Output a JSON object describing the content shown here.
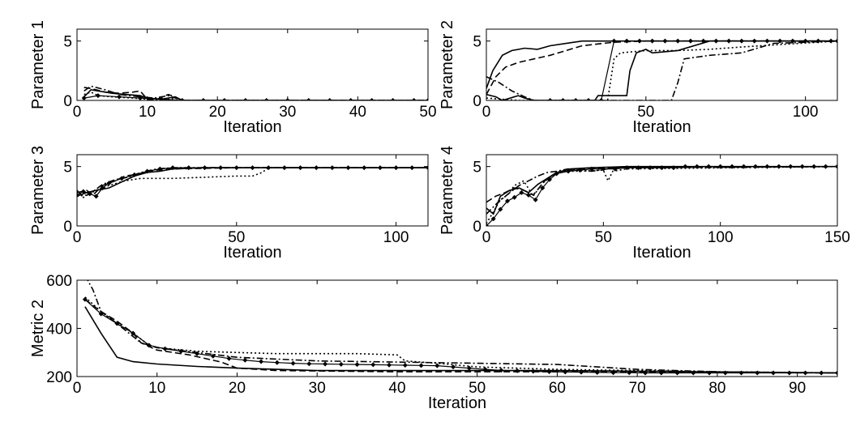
{
  "chart_data": [
    {
      "type": "line",
      "xlabel": "Iteration",
      "ylabel": "Parameter 1",
      "xlim": [
        0,
        50
      ],
      "ylim": [
        0,
        6
      ],
      "xticks": [
        0,
        10,
        20,
        30,
        40,
        50
      ],
      "yticks": [
        0,
        5
      ],
      "series": [
        {
          "style": "solid",
          "x": [
            1,
            2,
            3,
            5,
            7,
            9,
            10,
            12,
            14,
            15,
            20,
            30,
            40,
            50
          ],
          "y": [
            0.3,
            0.9,
            0.8,
            0.6,
            0.5,
            0.4,
            0.2,
            0.1,
            0.3,
            0,
            0,
            0,
            0,
            0
          ]
        },
        {
          "style": "dashed",
          "x": [
            1,
            2,
            4,
            6,
            8,
            9,
            10,
            11,
            13,
            14,
            15,
            30,
            50
          ],
          "y": [
            1.1,
            1.0,
            0.7,
            0.6,
            0.7,
            0.8,
            0.1,
            0,
            0.5,
            0.3,
            0,
            0,
            0
          ]
        },
        {
          "style": "dotted",
          "x": [
            1,
            2,
            3,
            5,
            8,
            10,
            12,
            14,
            15,
            50
          ],
          "y": [
            0.5,
            0.7,
            0.4,
            0.3,
            0.2,
            0.1,
            0,
            0.2,
            0,
            0
          ]
        },
        {
          "style": "dashdot",
          "x": [
            1,
            2,
            4,
            6,
            9,
            11,
            13,
            15,
            50
          ],
          "y": [
            0.8,
            1.2,
            0.9,
            0.5,
            0.3,
            0.2,
            0.4,
            0,
            0
          ]
        },
        {
          "style": "markers",
          "x": [
            1,
            3,
            6,
            9,
            12,
            15,
            18,
            21,
            24,
            27,
            30,
            33,
            36,
            39,
            42,
            45,
            48,
            50
          ],
          "y": [
            0.2,
            0.4,
            0.3,
            0.2,
            0.1,
            0,
            0,
            0,
            0,
            0,
            0,
            0,
            0,
            0,
            0,
            0,
            0,
            0
          ]
        }
      ]
    },
    {
      "type": "line",
      "xlabel": "Iteration",
      "ylabel": "Parameter 2",
      "xlim": [
        0,
        110
      ],
      "ylim": [
        0,
        6
      ],
      "xticks": [
        0,
        50,
        100
      ],
      "yticks": [
        0,
        5
      ],
      "series": [
        {
          "style": "solid",
          "x": [
            0,
            2,
            5,
            8,
            12,
            16,
            20,
            25,
            30,
            40,
            60,
            110
          ],
          "y": [
            1,
            2.5,
            3.8,
            4.2,
            4.4,
            4.3,
            4.6,
            4.8,
            5,
            5,
            5,
            5
          ]
        },
        {
          "style": "dashed",
          "x": [
            0,
            3,
            6,
            10,
            15,
            20,
            25,
            30,
            40,
            50,
            70,
            110
          ],
          "y": [
            0.5,
            2,
            2.8,
            3.2,
            3.5,
            3.8,
            4.2,
            4.6,
            4.9,
            5,
            5,
            5
          ]
        },
        {
          "style": "solid",
          "x": [
            0,
            3,
            5,
            10,
            12,
            15,
            20,
            30,
            34,
            35,
            44,
            45,
            47,
            50,
            52,
            60,
            70,
            110
          ],
          "y": [
            0.5,
            0.3,
            0,
            0.4,
            0.2,
            0,
            0,
            0,
            0,
            0.4,
            0.4,
            2.5,
            4,
            4.3,
            4,
            4.2,
            5,
            5
          ]
        },
        {
          "style": "dotted",
          "x": [
            0,
            5,
            10,
            20,
            38,
            40,
            42,
            50,
            60,
            70,
            80,
            110
          ],
          "y": [
            0.2,
            0.1,
            0,
            0,
            0,
            3.5,
            4,
            4.2,
            4.2,
            4.3,
            4.5,
            5
          ]
        },
        {
          "style": "dashdot",
          "x": [
            0,
            4,
            8,
            12,
            15,
            20,
            40,
            58,
            60,
            62,
            70,
            80,
            90,
            110
          ],
          "y": [
            2,
            1.5,
            0.8,
            0.3,
            0,
            0,
            0,
            0,
            1.5,
            3.5,
            3.8,
            4,
            4.8,
            5
          ]
        },
        {
          "style": "markers",
          "x": [
            20,
            24,
            28,
            32,
            36,
            40,
            44,
            48,
            52,
            56,
            60,
            64,
            68,
            72,
            76,
            80,
            84,
            88,
            92,
            96,
            100,
            104,
            108,
            110
          ],
          "y": [
            0,
            0,
            0,
            0,
            0,
            5,
            5,
            5,
            5,
            5,
            5,
            5,
            5,
            5,
            5,
            5,
            5,
            5,
            5,
            5,
            5,
            5,
            5,
            5
          ]
        }
      ]
    },
    {
      "type": "line",
      "xlabel": "Iteration",
      "ylabel": "Parameter 3",
      "xlim": [
        0,
        110
      ],
      "ylim": [
        0,
        6
      ],
      "xticks": [
        0,
        50,
        100
      ],
      "yticks": [
        0,
        5
      ],
      "series": [
        {
          "style": "solid",
          "x": [
            0,
            3,
            6,
            10,
            14,
            18,
            22,
            26,
            30,
            40,
            60,
            110
          ],
          "y": [
            2.5,
            2.8,
            3,
            3.2,
            3.7,
            4.2,
            4.5,
            4.6,
            4.8,
            4.9,
            4.9,
            4.9
          ]
        },
        {
          "style": "dashed",
          "x": [
            0,
            3,
            5,
            8,
            12,
            15,
            20,
            25,
            30,
            50,
            110
          ],
          "y": [
            2.8,
            3,
            2.6,
            3.4,
            3.8,
            4.2,
            4.4,
            4.7,
            4.8,
            4.9,
            4.9
          ]
        },
        {
          "style": "dotted",
          "x": [
            0,
            3,
            6,
            10,
            15,
            20,
            30,
            40,
            50,
            55,
            58,
            60,
            110
          ],
          "y": [
            2.5,
            2.6,
            3,
            3.4,
            3.8,
            4,
            4,
            4.1,
            4.2,
            4.2,
            4.5,
            4.9,
            4.9
          ]
        },
        {
          "style": "dashdot",
          "x": [
            0,
            2,
            5,
            8,
            12,
            16,
            20,
            25,
            30,
            60,
            110
          ],
          "y": [
            3,
            2.4,
            2.9,
            3.5,
            3.9,
            4.1,
            4.5,
            4.8,
            4.9,
            4.9,
            4.9
          ]
        },
        {
          "style": "markers",
          "x": [
            0,
            2,
            4,
            6,
            8,
            10,
            14,
            18,
            22,
            26,
            30,
            35,
            40,
            45,
            50,
            55,
            60,
            65,
            70,
            75,
            80,
            85,
            90,
            95,
            100,
            105,
            110
          ],
          "y": [
            2.6,
            2.9,
            2.7,
            2.5,
            3.2,
            3.6,
            4,
            4.3,
            4.6,
            4.8,
            4.9,
            4.9,
            4.9,
            4.9,
            4.9,
            4.9,
            4.9,
            4.9,
            4.9,
            4.9,
            4.9,
            4.9,
            4.9,
            4.9,
            4.9,
            4.9,
            4.9
          ]
        }
      ]
    },
    {
      "type": "line",
      "xlabel": "Iteration",
      "ylabel": "Parameter 4",
      "xlim": [
        0,
        150
      ],
      "ylim": [
        0,
        6
      ],
      "xticks": [
        0,
        50,
        100,
        150
      ],
      "yticks": [
        0,
        5
      ],
      "series": [
        {
          "style": "solid",
          "x": [
            0,
            3,
            6,
            10,
            14,
            18,
            22,
            26,
            30,
            36,
            45,
            60,
            150
          ],
          "y": [
            1.5,
            1,
            2.5,
            3,
            3.2,
            2.8,
            3.5,
            4,
            4.5,
            4.8,
            4.9,
            5,
            5
          ]
        },
        {
          "style": "dashed",
          "x": [
            0,
            4,
            8,
            12,
            16,
            20,
            25,
            30,
            35,
            40,
            60,
            150
          ],
          "y": [
            2,
            2.5,
            2.8,
            3.2,
            3,
            2.6,
            3.8,
            4.5,
            4.7,
            4.8,
            4.9,
            5
          ]
        },
        {
          "style": "dotted",
          "x": [
            0,
            3,
            6,
            9,
            12,
            16,
            20,
            24,
            28,
            32,
            40,
            50,
            52,
            54,
            60,
            150
          ],
          "y": [
            0.2,
            1.2,
            2.2,
            2.6,
            3.4,
            3.8,
            2.5,
            3.6,
            4.2,
            4.6,
            4.6,
            4.7,
            3.8,
            4.6,
            4.8,
            5
          ]
        },
        {
          "style": "dashdot",
          "x": [
            0,
            5,
            10,
            14,
            18,
            22,
            26,
            30,
            35,
            45,
            55,
            150
          ],
          "y": [
            1,
            2,
            2.8,
            3.4,
            3.8,
            4.2,
            4.5,
            4.6,
            4.8,
            4.6,
            4.9,
            5
          ]
        },
        {
          "style": "markers",
          "x": [
            0,
            3,
            6,
            9,
            12,
            15,
            18,
            21,
            24,
            27,
            30,
            35,
            40,
            45,
            50,
            55,
            60,
            65,
            70,
            75,
            80,
            85,
            90,
            95,
            100,
            105,
            110,
            115,
            120,
            125,
            130,
            135,
            140,
            145,
            150
          ],
          "y": [
            0,
            0.6,
            1.4,
            2.1,
            2.4,
            2.8,
            2.6,
            2.2,
            3.2,
            3.9,
            4.4,
            4.6,
            4.7,
            4.8,
            4.8,
            4.8,
            4.9,
            4.9,
            4.9,
            4.9,
            4.9,
            5,
            5,
            5,
            5,
            5,
            5,
            5,
            5,
            5,
            5,
            5,
            5,
            5,
            5
          ]
        }
      ]
    },
    {
      "type": "line",
      "xlabel": "Iteration",
      "ylabel": "Metric 2",
      "xlim": [
        0,
        95
      ],
      "ylim": [
        200,
        600
      ],
      "xticks": [
        0,
        10,
        20,
        30,
        40,
        50,
        60,
        70,
        80,
        90
      ],
      "yticks": [
        200,
        400,
        600
      ],
      "series": [
        {
          "style": "solid",
          "x": [
            1,
            3,
            5,
            7,
            10,
            15,
            20,
            25,
            30,
            40,
            60,
            95
          ],
          "y": [
            490,
            380,
            280,
            262,
            252,
            242,
            235,
            230,
            225,
            225,
            225,
            215
          ]
        },
        {
          "style": "dashed",
          "x": [
            1,
            3,
            5,
            7,
            8,
            10,
            14,
            18,
            20,
            25,
            40,
            60,
            95
          ],
          "y": [
            520,
            470,
            430,
            380,
            340,
            310,
            290,
            260,
            235,
            225,
            220,
            220,
            215
          ]
        },
        {
          "style": "dotted",
          "x": [
            1,
            3,
            5,
            7,
            9,
            10,
            15,
            20,
            25,
            30,
            35,
            40,
            41,
            45,
            50,
            60,
            70,
            80,
            95
          ],
          "y": [
            530,
            470,
            420,
            380,
            330,
            320,
            305,
            300,
            295,
            295,
            295,
            290,
            265,
            255,
            240,
            230,
            225,
            220,
            215
          ]
        },
        {
          "style": "dashdot",
          "x": [
            1,
            2,
            3,
            5,
            8,
            10,
            15,
            20,
            30,
            40,
            50,
            60,
            70,
            80,
            95
          ],
          "y": [
            620,
            560,
            470,
            420,
            340,
            320,
            300,
            280,
            265,
            260,
            255,
            250,
            230,
            220,
            215
          ]
        },
        {
          "style": "markers",
          "x": [
            1,
            3,
            5,
            7,
            9,
            11,
            13,
            15,
            17,
            19,
            21,
            23,
            25,
            27,
            29,
            31,
            33,
            35,
            37,
            39,
            41,
            43,
            45,
            47,
            49,
            51,
            53,
            55,
            57,
            59,
            61,
            63,
            65,
            67,
            69,
            71,
            73,
            75,
            77,
            79,
            81,
            83,
            85,
            87,
            89,
            91,
            93,
            95
          ],
          "y": [
            520,
            460,
            420,
            380,
            330,
            315,
            305,
            295,
            285,
            275,
            268,
            262,
            258,
            255,
            253,
            252,
            251,
            250,
            249,
            248,
            247,
            246,
            245,
            240,
            235,
            230,
            226,
            224,
            222,
            220,
            219,
            218,
            217,
            216,
            216,
            215,
            215,
            215,
            215,
            215,
            215,
            215,
            215,
            215,
            215,
            215,
            215,
            215
          ]
        }
      ]
    }
  ]
}
